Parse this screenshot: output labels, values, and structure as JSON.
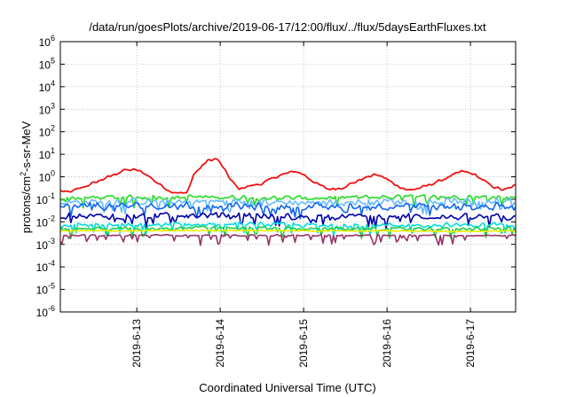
{
  "chart_data": {
    "type": "line",
    "title": "/data/run/goesPlots/archive/2019-06-17/12:00/flux/../flux/5daysEarthFluxes.txt",
    "xlabel": "Coordinated Universal Time (UTC)",
    "ylabel": "protons/cm²-s-sr-MeV",
    "yscale": "log",
    "ylim_exp": [
      -6,
      6
    ],
    "y_ticks": [
      {
        "base": "10",
        "exp": "6"
      },
      {
        "base": "10",
        "exp": "5"
      },
      {
        "base": "10",
        "exp": "4"
      },
      {
        "base": "10",
        "exp": "3"
      },
      {
        "base": "10",
        "exp": "2"
      },
      {
        "base": "10",
        "exp": "1"
      },
      {
        "base": "10",
        "exp": "0"
      },
      {
        "base": "10",
        "exp": "-1"
      },
      {
        "base": "10",
        "exp": "-2"
      },
      {
        "base": "10",
        "exp": "-3"
      },
      {
        "base": "10",
        "exp": "-4"
      },
      {
        "base": "10",
        "exp": "-5"
      },
      {
        "base": "10",
        "exp": "-6"
      }
    ],
    "x_range_days": [
      "2019-06-12 02:00",
      "2019-06-17 13:00"
    ],
    "x_ticks": [
      "2019-6-13",
      "2019-6-14",
      "2019-6-15",
      "2019-6-16",
      "2019-6-17"
    ],
    "grid": true,
    "series": [
      {
        "color": "#ee1111",
        "anchors_log10": [
          [
            0.0,
            -0.7
          ],
          [
            0.06,
            -0.6
          ],
          [
            0.18,
            -0.7
          ],
          [
            0.4,
            -0.4
          ],
          [
            0.7,
            0.05
          ],
          [
            0.85,
            0.3
          ],
          [
            1.0,
            0.3
          ],
          [
            1.12,
            0.1
          ],
          [
            1.22,
            -0.2
          ],
          [
            1.4,
            -0.65
          ],
          [
            1.6,
            -0.75
          ],
          [
            1.68,
            0.1
          ],
          [
            1.85,
            0.72
          ],
          [
            1.96,
            0.8
          ],
          [
            2.02,
            0.5
          ],
          [
            2.12,
            -0.1
          ],
          [
            2.22,
            -0.55
          ],
          [
            2.3,
            -0.45
          ],
          [
            2.5,
            -0.3
          ],
          [
            2.7,
            0.05
          ],
          [
            2.9,
            0.25
          ],
          [
            3.0,
            0.1
          ],
          [
            3.15,
            -0.3
          ],
          [
            3.3,
            -0.55
          ],
          [
            3.45,
            -0.5
          ],
          [
            3.7,
            -0.1
          ],
          [
            3.85,
            0.1
          ],
          [
            3.95,
            0.0
          ],
          [
            4.1,
            -0.35
          ],
          [
            4.25,
            -0.6
          ],
          [
            4.4,
            -0.5
          ],
          [
            4.55,
            -0.3
          ],
          [
            4.75,
            0.0
          ],
          [
            4.9,
            0.25
          ],
          [
            5.05,
            0.1
          ],
          [
            5.25,
            -0.4
          ],
          [
            5.4,
            -0.6
          ],
          [
            5.5,
            -0.45
          ],
          [
            5.6,
            -0.3
          ]
        ],
        "noise": 0.07,
        "spikes": 0.0
      },
      {
        "color": "#22dd22",
        "anchors_log10": [
          [
            0.0,
            -0.95
          ],
          [
            1.0,
            -0.9
          ],
          [
            2.0,
            -0.9
          ],
          [
            3.0,
            -0.95
          ],
          [
            4.0,
            -0.9
          ],
          [
            5.0,
            -0.9
          ],
          [
            5.6,
            -0.9
          ]
        ],
        "noise": 0.13,
        "spikes": 0.08
      },
      {
        "color": "#66bbff",
        "anchors_log10": [
          [
            0.0,
            -1.15
          ],
          [
            1.0,
            -1.1
          ],
          [
            2.0,
            -1.1
          ],
          [
            3.0,
            -1.15
          ],
          [
            4.0,
            -1.1
          ],
          [
            5.0,
            -1.1
          ],
          [
            5.6,
            -1.1
          ]
        ],
        "noise": 0.18,
        "spikes": 0.12
      },
      {
        "color": "#1166ee",
        "anchors_log10": [
          [
            0.0,
            -1.35
          ],
          [
            1.0,
            -1.3
          ],
          [
            2.0,
            -1.3
          ],
          [
            3.0,
            -1.35
          ],
          [
            4.0,
            -1.3
          ],
          [
            5.0,
            -1.35
          ],
          [
            5.6,
            -1.3
          ]
        ],
        "noise": 0.2,
        "spikes": 0.15
      },
      {
        "color": "#0000aa",
        "anchors_log10": [
          [
            0.0,
            -1.75
          ],
          [
            1.0,
            -1.75
          ],
          [
            2.0,
            -1.7
          ],
          [
            3.0,
            -1.8
          ],
          [
            4.0,
            -1.75
          ],
          [
            5.0,
            -1.8
          ],
          [
            5.6,
            -1.8
          ]
        ],
        "noise": 0.17,
        "spikes": 0.12
      },
      {
        "color": "#00dddd",
        "anchors_log10": [
          [
            0.0,
            -2.15
          ],
          [
            1.0,
            -2.15
          ],
          [
            2.0,
            -2.1
          ],
          [
            3.0,
            -2.15
          ],
          [
            4.0,
            -2.15
          ],
          [
            5.0,
            -2.15
          ],
          [
            5.6,
            -2.1
          ]
        ],
        "noise": 0.12,
        "spikes": 0.15
      },
      {
        "color": "#22cc44",
        "anchors_log10": [
          [
            0.0,
            -2.3
          ],
          [
            1.0,
            -2.3
          ],
          [
            2.0,
            -2.25
          ],
          [
            3.0,
            -2.3
          ],
          [
            4.0,
            -2.3
          ],
          [
            5.0,
            -2.3
          ],
          [
            5.6,
            -2.3
          ]
        ],
        "noise": 0.09,
        "spikes": 0.15
      },
      {
        "color": "#eeee00",
        "anchors_log10": [
          [
            0.0,
            -2.4
          ],
          [
            1.0,
            -2.4
          ],
          [
            2.0,
            -2.38
          ],
          [
            3.0,
            -2.4
          ],
          [
            4.0,
            -2.4
          ],
          [
            5.0,
            -2.42
          ],
          [
            5.6,
            -2.4
          ]
        ],
        "noise": 0.03,
        "spikes": 0.0
      },
      {
        "color": "#993366",
        "anchors_log10": [
          [
            0.0,
            -2.6
          ],
          [
            1.0,
            -2.6
          ],
          [
            2.0,
            -2.6
          ],
          [
            3.0,
            -2.6
          ],
          [
            4.0,
            -2.6
          ],
          [
            5.0,
            -2.6
          ],
          [
            5.6,
            -2.6
          ]
        ],
        "noise": 0.04,
        "spikes": 0.2
      }
    ]
  }
}
